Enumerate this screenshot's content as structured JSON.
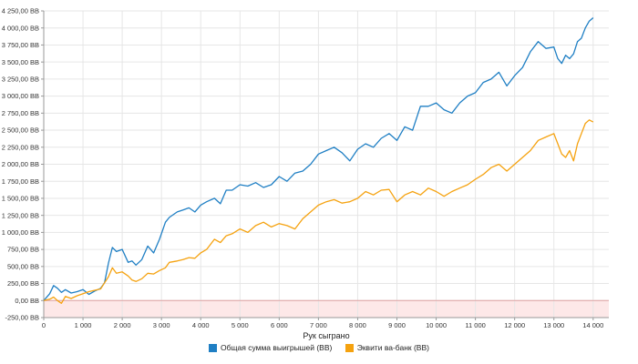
{
  "chart_data": {
    "type": "line",
    "xlabel": "Рук сыграно",
    "ylabel": "",
    "xlim": [
      0,
      14400
    ],
    "ylim": [
      -250,
      4250
    ],
    "grid": true,
    "legend_position": "bottom",
    "x_ticks": [
      {
        "value": 0,
        "label": "0"
      },
      {
        "value": 1000,
        "label": "1 000"
      },
      {
        "value": 2000,
        "label": "2 000"
      },
      {
        "value": 3000,
        "label": "3 000"
      },
      {
        "value": 4000,
        "label": "4 000"
      },
      {
        "value": 5000,
        "label": "5 000"
      },
      {
        "value": 6000,
        "label": "6 000"
      },
      {
        "value": 7000,
        "label": "7 000"
      },
      {
        "value": 8000,
        "label": "8 000"
      },
      {
        "value": 9000,
        "label": "9 000"
      },
      {
        "value": 10000,
        "label": "10 000"
      },
      {
        "value": 11000,
        "label": "11 000"
      },
      {
        "value": 12000,
        "label": "12 000"
      },
      {
        "value": 13000,
        "label": "13 000"
      },
      {
        "value": 14000,
        "label": "14 000"
      }
    ],
    "y_ticks": [
      {
        "value": 4250,
        "label": "4 250,00 BB"
      },
      {
        "value": 4000,
        "label": "4 000,00 BB"
      },
      {
        "value": 3750,
        "label": "3 750,00 BB"
      },
      {
        "value": 3500,
        "label": "3 500,00 BB"
      },
      {
        "value": 3250,
        "label": "3 250,00 BB"
      },
      {
        "value": 3000,
        "label": "3 000,00 BB"
      },
      {
        "value": 2750,
        "label": "2 750,00 BB"
      },
      {
        "value": 2500,
        "label": "2 500,00 BB"
      },
      {
        "value": 2250,
        "label": "2 250,00 BB"
      },
      {
        "value": 2000,
        "label": "2 000,00 BB"
      },
      {
        "value": 1750,
        "label": "1 750,00 BB"
      },
      {
        "value": 1500,
        "label": "1 500,00 BB"
      },
      {
        "value": 1250,
        "label": "1 250,00 BB"
      },
      {
        "value": 1000,
        "label": "1 000,00 BB"
      },
      {
        "value": 750,
        "label": "750,00 BB"
      },
      {
        "value": 500,
        "label": "500,00 BB"
      },
      {
        "value": 250,
        "label": "250,00 BB"
      },
      {
        "value": 0,
        "label": "0,00 BB"
      },
      {
        "value": -250,
        "label": "-250,00 BB"
      }
    ],
    "negative_region_color": "#fde8e8",
    "zero_line_color": "#e0a0a0",
    "series": [
      {
        "name": "Общая сумма выигрышей (BB)",
        "color": "#1f7fc4",
        "x": [
          0,
          150,
          250,
          350,
          450,
          550,
          700,
          850,
          1000,
          1150,
          1300,
          1450,
          1550,
          1650,
          1750,
          1850,
          2000,
          2150,
          2250,
          2350,
          2500,
          2650,
          2800,
          2950,
          3100,
          3200,
          3400,
          3550,
          3700,
          3850,
          4000,
          4150,
          4350,
          4500,
          4650,
          4800,
          5000,
          5200,
          5400,
          5600,
          5800,
          6000,
          6200,
          6400,
          6600,
          6800,
          7000,
          7200,
          7400,
          7600,
          7800,
          8000,
          8200,
          8400,
          8600,
          8800,
          9000,
          9200,
          9400,
          9600,
          9800,
          10000,
          10200,
          10400,
          10600,
          10800,
          11000,
          11200,
          11400,
          11600,
          11800,
          12000,
          12200,
          12400,
          12600,
          12800,
          13000,
          13100,
          13200,
          13300,
          13400,
          13500,
          13600,
          13700,
          13800,
          13900,
          14000
        ],
        "y": [
          0,
          100,
          220,
          180,
          120,
          160,
          110,
          130,
          160,
          90,
          140,
          180,
          260,
          550,
          780,
          720,
          750,
          560,
          580,
          520,
          600,
          800,
          700,
          900,
          1150,
          1220,
          1300,
          1330,
          1360,
          1300,
          1400,
          1450,
          1500,
          1420,
          1620,
          1620,
          1700,
          1680,
          1730,
          1660,
          1700,
          1820,
          1750,
          1870,
          1900,
          2000,
          2150,
          2200,
          2250,
          2170,
          2050,
          2220,
          2300,
          2250,
          2380,
          2450,
          2350,
          2550,
          2500,
          2850,
          2850,
          2900,
          2800,
          2750,
          2900,
          3000,
          3050,
          3200,
          3250,
          3350,
          3150,
          3300,
          3420,
          3650,
          3800,
          3700,
          3720,
          3550,
          3480,
          3600,
          3550,
          3620,
          3800,
          3850,
          4000,
          4100,
          4150
        ]
      },
      {
        "name": "Эквити ва-банк (BB)",
        "color": "#f5a20f",
        "x": [
          0,
          150,
          250,
          350,
          450,
          550,
          700,
          850,
          1000,
          1150,
          1300,
          1450,
          1550,
          1650,
          1750,
          1850,
          2000,
          2150,
          2250,
          2350,
          2500,
          2650,
          2800,
          2950,
          3100,
          3200,
          3400,
          3550,
          3700,
          3850,
          4000,
          4150,
          4350,
          4500,
          4650,
          4800,
          5000,
          5200,
          5400,
          5600,
          5800,
          6000,
          6200,
          6400,
          6600,
          6800,
          7000,
          7200,
          7400,
          7600,
          7800,
          8000,
          8200,
          8400,
          8600,
          8800,
          9000,
          9200,
          9400,
          9600,
          9800,
          10000,
          10200,
          10400,
          10600,
          10800,
          11000,
          11200,
          11400,
          11600,
          11800,
          12000,
          12200,
          12400,
          12600,
          12800,
          13000,
          13100,
          13200,
          13300,
          13400,
          13500,
          13600,
          13700,
          13800,
          13900,
          14000
        ],
        "y": [
          0,
          20,
          50,
          0,
          -40,
          60,
          30,
          70,
          100,
          130,
          150,
          170,
          260,
          350,
          480,
          400,
          420,
          360,
          300,
          280,
          320,
          400,
          390,
          440,
          480,
          560,
          580,
          600,
          630,
          620,
          700,
          750,
          900,
          850,
          950,
          980,
          1050,
          1000,
          1100,
          1150,
          1080,
          1130,
          1100,
          1050,
          1200,
          1300,
          1400,
          1450,
          1480,
          1430,
          1450,
          1500,
          1600,
          1550,
          1620,
          1630,
          1450,
          1550,
          1600,
          1550,
          1650,
          1600,
          1530,
          1600,
          1650,
          1700,
          1780,
          1850,
          1950,
          2000,
          1900,
          2000,
          2100,
          2200,
          2350,
          2400,
          2450,
          2300,
          2150,
          2100,
          2200,
          2050,
          2300,
          2450,
          2600,
          2650,
          2620
        ]
      }
    ]
  }
}
